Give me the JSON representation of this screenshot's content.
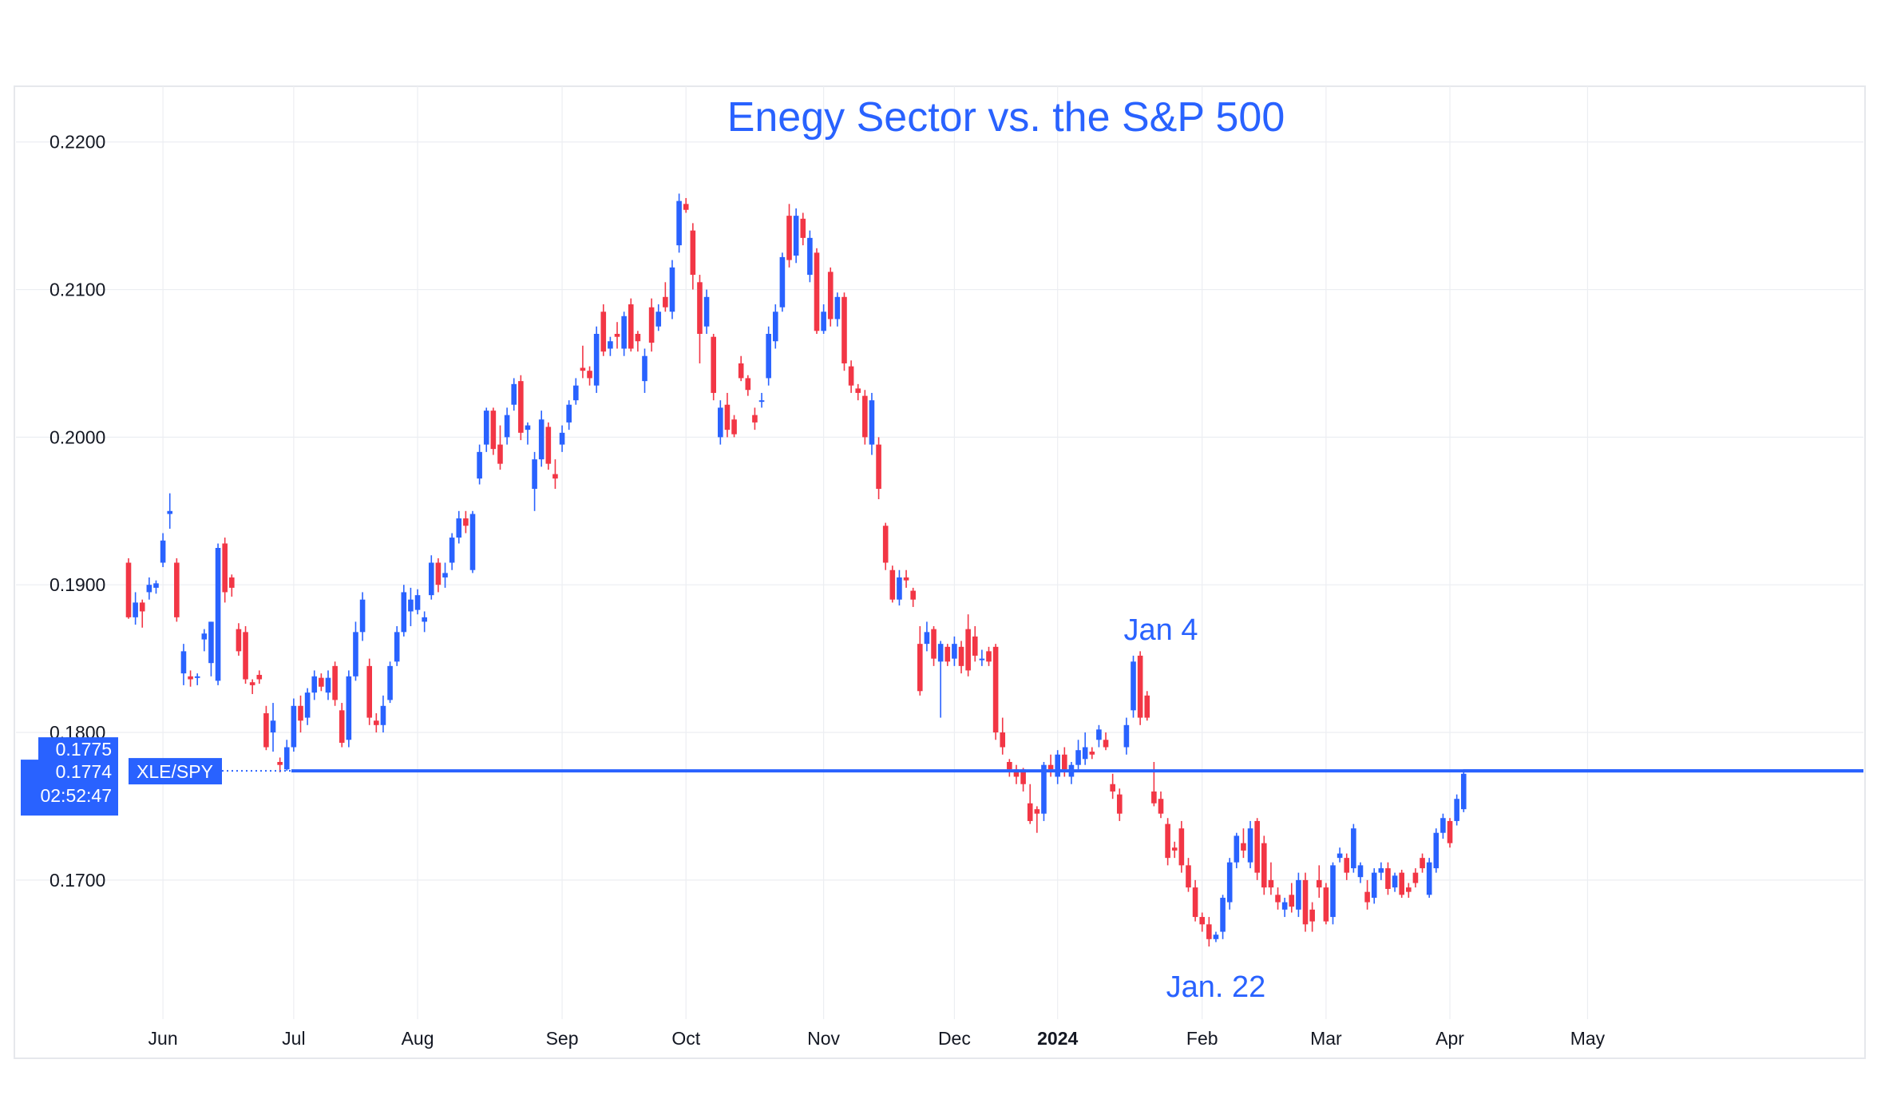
{
  "chart_data": {
    "type": "candlestick",
    "title": "Enegy Sector vs. the S&P 500",
    "symbol": "XLE/SPY",
    "colors": {
      "up": "#2962ff",
      "down": "#f23645",
      "accent": "#2962ff",
      "grid": "#eceef2",
      "text": "#131722"
    },
    "y_ticks": [
      "0.2200",
      "0.2100",
      "0.2000",
      "0.1900",
      "0.1800",
      "0.1700"
    ],
    "ylim": [
      0.1635,
      0.2215
    ],
    "x_ticks": [
      {
        "label": "Jun",
        "index": 5,
        "bold": false
      },
      {
        "label": "Jul",
        "index": 24,
        "bold": false
      },
      {
        "label": "Aug",
        "index": 42,
        "bold": false
      },
      {
        "label": "Sep",
        "index": 63,
        "bold": false
      },
      {
        "label": "Oct",
        "index": 81,
        "bold": false
      },
      {
        "label": "Nov",
        "index": 101,
        "bold": false
      },
      {
        "label": "Dec",
        "index": 120,
        "bold": false
      },
      {
        "label": "2024",
        "index": 135,
        "bold": true
      },
      {
        "label": "Feb",
        "index": 156,
        "bold": false
      },
      {
        "label": "Mar",
        "index": 174,
        "bold": false
      },
      {
        "label": "Apr",
        "index": 192,
        "bold": false
      },
      {
        "label": "May",
        "index": 212,
        "bold": false
      }
    ],
    "ohlc": [
      [
        0.1915,
        0.1918,
        0.1877,
        0.1878
      ],
      [
        0.1878,
        0.1895,
        0.1873,
        0.1888
      ],
      [
        0.1888,
        0.189,
        0.1871,
        0.1882
      ],
      [
        0.1895,
        0.1905,
        0.189,
        0.19
      ],
      [
        0.1898,
        0.1903,
        0.1894,
        0.1901
      ],
      [
        0.1915,
        0.1935,
        0.1912,
        0.193
      ],
      [
        0.1948,
        0.1962,
        0.1938,
        0.195
      ],
      [
        0.1915,
        0.1918,
        0.1875,
        0.1878
      ],
      [
        0.184,
        0.186,
        0.1832,
        0.1855
      ],
      [
        0.1838,
        0.1842,
        0.1831,
        0.1836
      ],
      [
        0.1837,
        0.184,
        0.1832,
        0.1838
      ],
      [
        0.1863,
        0.187,
        0.1855,
        0.1867
      ],
      [
        0.1847,
        0.1875,
        0.1838,
        0.1875
      ],
      [
        0.1835,
        0.1928,
        0.1832,
        0.1925
      ],
      [
        0.1928,
        0.1932,
        0.1888,
        0.1895
      ],
      [
        0.1905,
        0.1907,
        0.1892,
        0.1898
      ],
      [
        0.187,
        0.1874,
        0.1852,
        0.1855
      ],
      [
        0.1868,
        0.1872,
        0.1833,
        0.1836
      ],
      [
        0.1834,
        0.1836,
        0.1826,
        0.1832
      ],
      [
        0.1839,
        0.1842,
        0.1833,
        0.1836
      ],
      [
        0.1813,
        0.1818,
        0.1788,
        0.179
      ],
      [
        0.18,
        0.182,
        0.1787,
        0.1808
      ],
      [
        0.178,
        0.1783,
        0.1773,
        0.1778
      ],
      [
        0.1775,
        0.1795,
        0.1774,
        0.179
      ],
      [
        0.179,
        0.1823,
        0.1787,
        0.1818
      ],
      [
        0.1818,
        0.1825,
        0.18,
        0.1808
      ],
      [
        0.181,
        0.183,
        0.1805,
        0.1827
      ],
      [
        0.1827,
        0.1842,
        0.1822,
        0.1838
      ],
      [
        0.1837,
        0.184,
        0.1828,
        0.1831
      ],
      [
        0.1827,
        0.1842,
        0.1822,
        0.1837
      ],
      [
        0.1845,
        0.1848,
        0.1818,
        0.1822
      ],
      [
        0.1815,
        0.182,
        0.179,
        0.1793
      ],
      [
        0.1795,
        0.1842,
        0.179,
        0.1838
      ],
      [
        0.1838,
        0.1875,
        0.1835,
        0.1868
      ],
      [
        0.1868,
        0.1895,
        0.1862,
        0.189
      ],
      [
        0.1845,
        0.185,
        0.1805,
        0.181
      ],
      [
        0.1808,
        0.1813,
        0.18,
        0.1805
      ],
      [
        0.1805,
        0.1825,
        0.18,
        0.1818
      ],
      [
        0.1822,
        0.1848,
        0.182,
        0.1845
      ],
      [
        0.1848,
        0.1872,
        0.1845,
        0.1868
      ],
      [
        0.1868,
        0.19,
        0.1865,
        0.1895
      ],
      [
        0.1882,
        0.1898,
        0.1872,
        0.189
      ],
      [
        0.1883,
        0.1897,
        0.188,
        0.1893
      ],
      [
        0.1875,
        0.1882,
        0.1868,
        0.1878
      ],
      [
        0.1893,
        0.192,
        0.189,
        0.1915
      ],
      [
        0.1915,
        0.1918,
        0.1895,
        0.19
      ],
      [
        0.1905,
        0.1915,
        0.1898,
        0.1908
      ],
      [
        0.1915,
        0.1935,
        0.191,
        0.1932
      ],
      [
        0.1932,
        0.195,
        0.1928,
        0.1945
      ],
      [
        0.1945,
        0.195,
        0.1935,
        0.194
      ],
      [
        0.191,
        0.195,
        0.1908,
        0.1948
      ],
      [
        0.1972,
        0.1995,
        0.1968,
        0.199
      ],
      [
        0.1995,
        0.202,
        0.199,
        0.2018
      ],
      [
        0.2018,
        0.202,
        0.1988,
        0.1992
      ],
      [
        0.1995,
        0.2008,
        0.1978,
        0.1982
      ],
      [
        0.2,
        0.202,
        0.1995,
        0.2015
      ],
      [
        0.2022,
        0.204,
        0.2018,
        0.2036
      ],
      [
        0.2038,
        0.2042,
        0.1998,
        0.2003
      ],
      [
        0.2005,
        0.201,
        0.1995,
        0.2008
      ],
      [
        0.1965,
        0.199,
        0.195,
        0.1985
      ],
      [
        0.1985,
        0.2018,
        0.198,
        0.2012
      ],
      [
        0.2007,
        0.201,
        0.1978,
        0.1982
      ],
      [
        0.1975,
        0.1985,
        0.1965,
        0.1972
      ],
      [
        0.1995,
        0.2008,
        0.199,
        0.2003
      ],
      [
        0.201,
        0.2025,
        0.2005,
        0.2022
      ],
      [
        0.2025,
        0.204,
        0.2022,
        0.2035
      ],
      [
        0.2047,
        0.2062,
        0.204,
        0.2045
      ],
      [
        0.2045,
        0.2048,
        0.2035,
        0.204
      ],
      [
        0.2035,
        0.2075,
        0.203,
        0.207
      ],
      [
        0.2085,
        0.209,
        0.2055,
        0.2058
      ],
      [
        0.206,
        0.2068,
        0.2055,
        0.2065
      ],
      [
        0.207,
        0.2078,
        0.206,
        0.2068
      ],
      [
        0.206,
        0.2085,
        0.2055,
        0.2082
      ],
      [
        0.209,
        0.2094,
        0.2058,
        0.206
      ],
      [
        0.207,
        0.2072,
        0.2058,
        0.2065
      ],
      [
        0.2038,
        0.206,
        0.203,
        0.2055
      ],
      [
        0.2088,
        0.2094,
        0.2058,
        0.2064
      ],
      [
        0.2075,
        0.209,
        0.2072,
        0.2085
      ],
      [
        0.2095,
        0.2105,
        0.2085,
        0.2088
      ],
      [
        0.2085,
        0.212,
        0.208,
        0.2115
      ],
      [
        0.213,
        0.2165,
        0.2125,
        0.216
      ],
      [
        0.2158,
        0.2162,
        0.2152,
        0.2154
      ],
      [
        0.214,
        0.2145,
        0.21,
        0.211
      ],
      [
        0.2105,
        0.211,
        0.205,
        0.207
      ],
      [
        0.2075,
        0.21,
        0.207,
        0.2095
      ],
      [
        0.2068,
        0.207,
        0.2025,
        0.203
      ],
      [
        0.2,
        0.2025,
        0.1995,
        0.202
      ],
      [
        0.2022,
        0.203,
        0.2,
        0.2005
      ],
      [
        0.2012,
        0.2015,
        0.2,
        0.2002
      ],
      [
        0.205,
        0.2055,
        0.2038,
        0.204
      ],
      [
        0.204,
        0.2042,
        0.2028,
        0.2032
      ],
      [
        0.2015,
        0.202,
        0.2005,
        0.201
      ],
      [
        0.2025,
        0.203,
        0.202,
        0.2025
      ],
      [
        0.204,
        0.2075,
        0.2035,
        0.207
      ],
      [
        0.2065,
        0.209,
        0.206,
        0.2085
      ],
      [
        0.2088,
        0.2125,
        0.2085,
        0.2122
      ],
      [
        0.215,
        0.2158,
        0.2115,
        0.212
      ],
      [
        0.2123,
        0.2155,
        0.2118,
        0.215
      ],
      [
        0.2148,
        0.2152,
        0.213,
        0.2135
      ],
      [
        0.211,
        0.214,
        0.2105,
        0.2135
      ],
      [
        0.2125,
        0.2128,
        0.207,
        0.2072
      ],
      [
        0.2072,
        0.209,
        0.207,
        0.2085
      ],
      [
        0.2112,
        0.2115,
        0.2075,
        0.208
      ],
      [
        0.208,
        0.2098,
        0.2075,
        0.2095
      ],
      [
        0.2095,
        0.2098,
        0.2045,
        0.205
      ],
      [
        0.2048,
        0.2052,
        0.203,
        0.2035
      ],
      [
        0.2033,
        0.2036,
        0.2025,
        0.203
      ],
      [
        0.2028,
        0.2032,
        0.1995,
        0.2
      ],
      [
        0.1995,
        0.203,
        0.1988,
        0.2025
      ],
      [
        0.1995,
        0.2,
        0.1958,
        0.1965
      ],
      [
        0.194,
        0.1942,
        0.191,
        0.1915
      ],
      [
        0.191,
        0.1913,
        0.1888,
        0.189
      ],
      [
        0.189,
        0.191,
        0.1886,
        0.1905
      ],
      [
        0.1905,
        0.191,
        0.1898,
        0.1903
      ],
      [
        0.1896,
        0.1898,
        0.1885,
        0.189
      ],
      [
        0.186,
        0.1872,
        0.1825,
        0.1828
      ],
      [
        0.186,
        0.1875,
        0.1855,
        0.1868
      ],
      [
        0.187,
        0.1872,
        0.1845,
        0.185
      ],
      [
        0.1848,
        0.1862,
        0.181,
        0.186
      ],
      [
        0.1858,
        0.186,
        0.1845,
        0.1848
      ],
      [
        0.185,
        0.1865,
        0.1845,
        0.186
      ],
      [
        0.1858,
        0.1862,
        0.184,
        0.1845
      ],
      [
        0.187,
        0.188,
        0.1838,
        0.1842
      ],
      [
        0.1865,
        0.1872,
        0.1848,
        0.1852
      ],
      [
        0.185,
        0.1856,
        0.1845,
        0.185
      ],
      [
        0.1855,
        0.1858,
        0.1845,
        0.1848
      ],
      [
        0.1858,
        0.186,
        0.1795,
        0.18
      ],
      [
        0.18,
        0.181,
        0.1785,
        0.179
      ],
      [
        0.178,
        0.1782,
        0.177,
        0.1775
      ],
      [
        0.1775,
        0.1778,
        0.1765,
        0.177
      ],
      [
        0.1775,
        0.1776,
        0.176,
        0.1765
      ],
      [
        0.1752,
        0.1765,
        0.1738,
        0.174
      ],
      [
        0.1748,
        0.175,
        0.1732,
        0.1745
      ],
      [
        0.1745,
        0.178,
        0.174,
        0.1778
      ],
      [
        0.1778,
        0.1785,
        0.177,
        0.1775
      ],
      [
        0.177,
        0.1788,
        0.1765,
        0.1785
      ],
      [
        0.1785,
        0.179,
        0.177,
        0.1775
      ],
      [
        0.177,
        0.178,
        0.1765,
        0.1778
      ],
      [
        0.1778,
        0.1795,
        0.1775,
        0.1788
      ],
      [
        0.1782,
        0.18,
        0.1778,
        0.179
      ],
      [
        0.1787,
        0.179,
        0.1782,
        0.1785
      ],
      [
        0.1795,
        0.1805,
        0.179,
        0.1802
      ],
      [
        0.1795,
        0.18,
        0.1788,
        0.179
      ],
      [
        0.1765,
        0.1772,
        0.1755,
        0.176
      ],
      [
        0.1758,
        0.1762,
        0.174,
        0.1745
      ],
      [
        0.179,
        0.181,
        0.1785,
        0.1805
      ],
      [
        0.1815,
        0.1852,
        0.181,
        0.1848
      ],
      [
        0.1852,
        0.1855,
        0.1805,
        0.181
      ],
      [
        0.1825,
        0.1828,
        0.1808,
        0.181
      ],
      [
        0.176,
        0.178,
        0.175,
        0.1752
      ],
      [
        0.1755,
        0.176,
        0.1742,
        0.1745
      ],
      [
        0.1738,
        0.1742,
        0.171,
        0.1715
      ],
      [
        0.1722,
        0.1726,
        0.1715,
        0.172
      ],
      [
        0.1735,
        0.174,
        0.1705,
        0.171
      ],
      [
        0.171,
        0.1715,
        0.1692,
        0.1695
      ],
      [
        0.1695,
        0.17,
        0.1672,
        0.1675
      ],
      [
        0.1675,
        0.1678,
        0.1665,
        0.167
      ],
      [
        0.167,
        0.1675,
        0.1655,
        0.166
      ],
      [
        0.166,
        0.1665,
        0.1658,
        0.1663
      ],
      [
        0.1665,
        0.169,
        0.166,
        0.1688
      ],
      [
        0.1685,
        0.1715,
        0.168,
        0.1712
      ],
      [
        0.1712,
        0.1732,
        0.1708,
        0.173
      ],
      [
        0.1725,
        0.1735,
        0.1715,
        0.172
      ],
      [
        0.1712,
        0.174,
        0.1708,
        0.1735
      ],
      [
        0.174,
        0.1742,
        0.17,
        0.1705
      ],
      [
        0.1725,
        0.173,
        0.169,
        0.1695
      ],
      [
        0.17,
        0.1712,
        0.169,
        0.1695
      ],
      [
        0.169,
        0.1695,
        0.168,
        0.1685
      ],
      [
        0.168,
        0.1688,
        0.1675,
        0.1685
      ],
      [
        0.169,
        0.1698,
        0.1678,
        0.1682
      ],
      [
        0.168,
        0.1705,
        0.1675,
        0.17
      ],
      [
        0.17,
        0.1705,
        0.1665,
        0.167
      ],
      [
        0.168,
        0.1685,
        0.1665,
        0.1672
      ],
      [
        0.17,
        0.171,
        0.1688,
        0.1695
      ],
      [
        0.1695,
        0.1698,
        0.167,
        0.1672
      ],
      [
        0.1675,
        0.1712,
        0.167,
        0.171
      ],
      [
        0.1715,
        0.1722,
        0.1712,
        0.1718
      ],
      [
        0.1715,
        0.1718,
        0.17,
        0.1705
      ],
      [
        0.1708,
        0.1738,
        0.1705,
        0.1735
      ],
      [
        0.1702,
        0.1712,
        0.1698,
        0.171
      ],
      [
        0.1692,
        0.17,
        0.168,
        0.1685
      ],
      [
        0.1688,
        0.1708,
        0.1684,
        0.1705
      ],
      [
        0.1705,
        0.1712,
        0.17,
        0.1708
      ],
      [
        0.1708,
        0.1712,
        0.169,
        0.1694
      ],
      [
        0.1695,
        0.1705,
        0.1692,
        0.1703
      ],
      [
        0.1705,
        0.1707,
        0.1688,
        0.169
      ],
      [
        0.1695,
        0.1698,
        0.1688,
        0.1692
      ],
      [
        0.1705,
        0.1708,
        0.1695,
        0.1698
      ],
      [
        0.1715,
        0.1718,
        0.1705,
        0.1708
      ],
      [
        0.169,
        0.1715,
        0.1688,
        0.1712
      ],
      [
        0.1708,
        0.1735,
        0.1705,
        0.1732
      ],
      [
        0.1732,
        0.1745,
        0.1728,
        0.1742
      ],
      [
        0.174,
        0.1742,
        0.1722,
        0.1725
      ],
      [
        0.174,
        0.1758,
        0.1737,
        0.1755
      ],
      [
        0.1748,
        0.1775,
        0.1746,
        0.1772
      ]
    ],
    "last_price": 0.1774,
    "price_tag": {
      "top": "0.1775",
      "mid": "0.1774",
      "bottom": "02:52:47"
    },
    "annotations": [
      {
        "text": "Jan 4",
        "index": 150,
        "value": 0.1852,
        "position": "above"
      },
      {
        "text": "Jan. 22",
        "index": 158,
        "value": 0.1655,
        "position": "below"
      }
    ]
  }
}
